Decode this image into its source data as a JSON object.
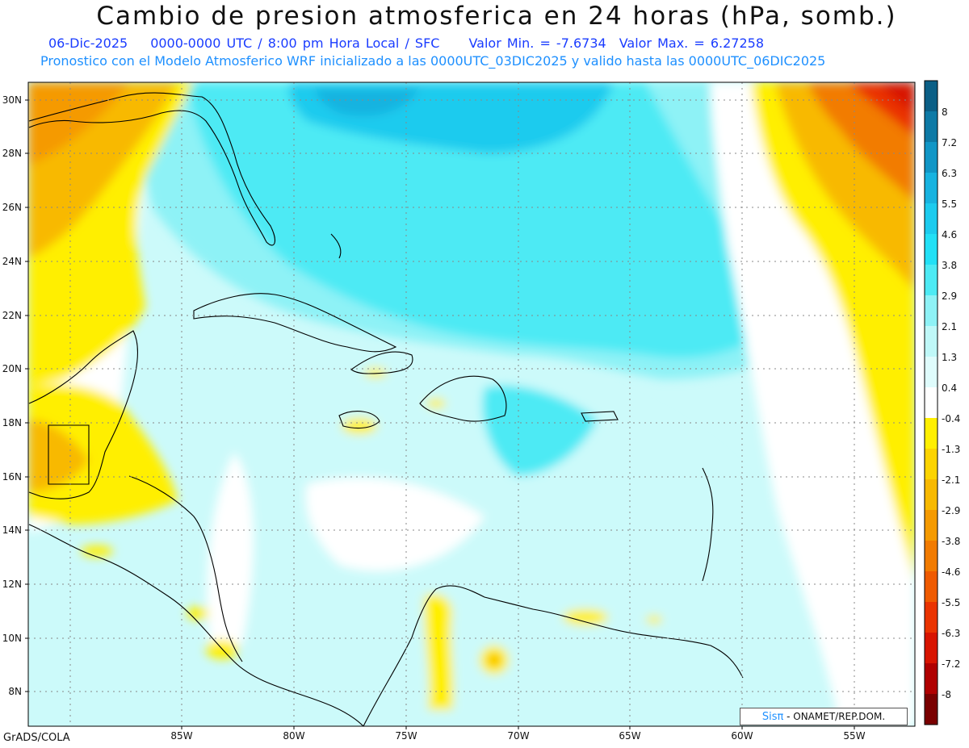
{
  "title": "Cambio de presion atmosferica en 24 horas (hPa, somb.)",
  "subtitle": {
    "date": "06-Dic-2025",
    "time": "0000-0000 UTC / 8:00 pm Hora Local / SFC",
    "min": "Valor Min. = -7.6734",
    "max": "Valor Max. = 6.27258"
  },
  "description": "Pronostico con el Modelo Atmosferico WRF inicializado a las 0000UTC_03DIC2025 y valido hasta las  0000UTC_06DIC2025",
  "lon_labels": [
    "85W",
    "80W",
    "75W",
    "70W",
    "65W",
    "60W",
    "55W"
  ],
  "lat_labels": [
    "30N",
    "28N",
    "26N",
    "24N",
    "22N",
    "20N",
    "18N",
    "16N",
    "14N",
    "12N",
    "10N",
    "8N"
  ],
  "colorbar": {
    "labels": [
      "8",
      "7.2",
      "6.3",
      "5.5",
      "4.6",
      "3.8",
      "2.9",
      "2.1",
      "1.3",
      "0.4",
      "-0.4",
      "-1.3",
      "-2.1",
      "-2.9",
      "-3.8",
      "-4.6",
      "-5.5",
      "-6.3",
      "-7.2",
      "-8"
    ],
    "colors": [
      "#0b5f86",
      "#0e7aa6",
      "#1196c6",
      "#17b3e0",
      "#1ccbee",
      "#22e0f6",
      "#4deaf4",
      "#8ef2f6",
      "#bff8f8",
      "#dffcfc",
      "#ffffff",
      "#ffef00",
      "#fcd400",
      "#f8b900",
      "#f59a00",
      "#f27b00",
      "#ef5a00",
      "#ea3300",
      "#d81400",
      "#b00000",
      "#7a0000"
    ]
  },
  "footer": "GrADS/COLA",
  "credit": {
    "brand": "Sisπ",
    "text": " - ONAMET/REP.DOM."
  }
}
